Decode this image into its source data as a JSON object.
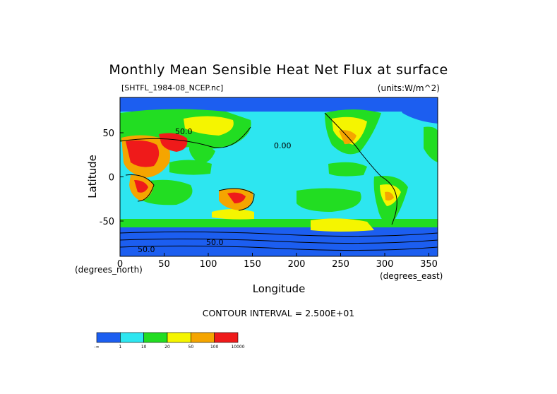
{
  "chart_data": {
    "type": "heatmap",
    "title": "Monthly Mean Sensible Heat Net Flux at surface",
    "subtitle_left": "[SHTFL_1984-08_NCEP.nc]",
    "subtitle_right": "(units:W/m^2)",
    "xlabel": "Longitude",
    "ylabel": "Latitude",
    "x_unit": "(degrees_east)",
    "y_unit": "(degrees_north)",
    "xlim": [
      0,
      360
    ],
    "ylim": [
      -90,
      90
    ],
    "x_ticks": [
      0,
      50,
      100,
      150,
      200,
      250,
      300,
      350
    ],
    "y_ticks": [
      -50,
      0,
      50
    ],
    "contour_interval": "CONTOUR INTERVAL = 2.500E+01",
    "contour_labels": [
      "0.00",
      "50.0",
      "50.0",
      "50.0"
    ],
    "colorbar": {
      "labels": [
        "-∞",
        "1",
        "10",
        "20",
        "50",
        "100",
        "10000"
      ],
      "colors": [
        "#1c5ef0",
        "#2de6f0",
        "#22dd22",
        "#f5f500",
        "#f5a500",
        "#ef1a1a"
      ]
    }
  }
}
